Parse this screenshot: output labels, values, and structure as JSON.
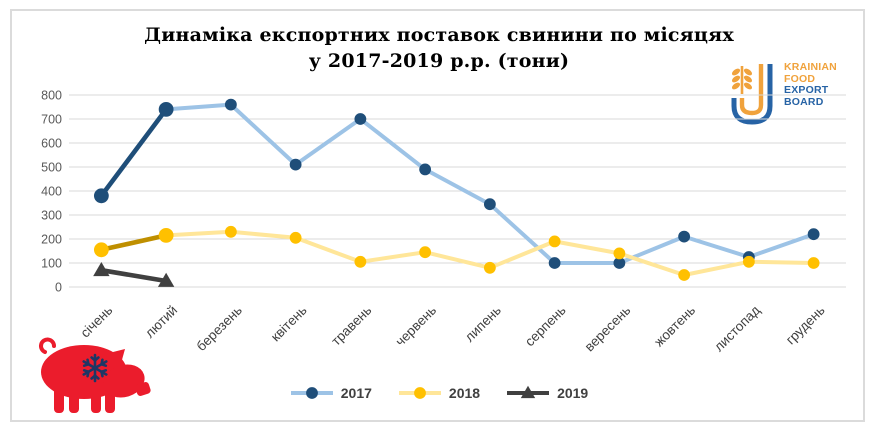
{
  "title_lines": [
    "Динаміка експортних поставок свинини по місяцях",
    "у 2017-2019 р.р. (тони)"
  ],
  "logo": {
    "lines": [
      "KRAINIAN",
      "FOOD",
      "EXPORT",
      "BOARD"
    ],
    "orange": "#F0A23C",
    "blue": "#2763A5"
  },
  "chart_data": {
    "type": "line",
    "title": "Динаміка експортних поставок свинини по місяцях у 2017-2019 р.р. (тони)",
    "categories": [
      "січень",
      "лютий",
      "березень",
      "квітень",
      "травень",
      "червень",
      "липень",
      "серпень",
      "вересень",
      "жовтень",
      "листопад",
      "грудень"
    ],
    "series": [
      {
        "name": "2017",
        "values": [
          380,
          740,
          760,
          510,
          700,
          490,
          345,
          100,
          100,
          210,
          125,
          220
        ],
        "line_color": "#9DC3E6",
        "emphasis_color": "#1F4E79",
        "marker_color": "#1F4E79",
        "marker": "circle",
        "emphasized_segments": 1
      },
      {
        "name": "2018",
        "values": [
          155,
          215,
          230,
          205,
          105,
          145,
          80,
          190,
          140,
          50,
          105,
          100
        ],
        "line_color": "#FFE699",
        "emphasis_color": "#BF8F00",
        "marker_color": "#FFC000",
        "marker": "circle",
        "emphasized_segments": 1
      },
      {
        "name": "2019",
        "values": [
          70,
          25,
          null,
          null,
          null,
          null,
          null,
          null,
          null,
          null,
          null,
          null
        ],
        "line_color": "#404040",
        "emphasis_color": "#404040",
        "marker_color": "#404040",
        "marker": "triangle",
        "emphasized_segments": 1
      }
    ],
    "ylim": [
      0,
      800
    ],
    "ytick_step": 100,
    "grid": true,
    "legend_position": "bottom",
    "ylabel": "",
    "xlabel": ""
  },
  "colors": {
    "grid": "#D9D9D9",
    "y_label": "#595959",
    "x_label": "#3F3F3F",
    "frame_border": "#DBDBDB",
    "pig_red": "#EB1C2C",
    "snowflake_navy": "#1E3765",
    "legend_text": "#404040"
  }
}
